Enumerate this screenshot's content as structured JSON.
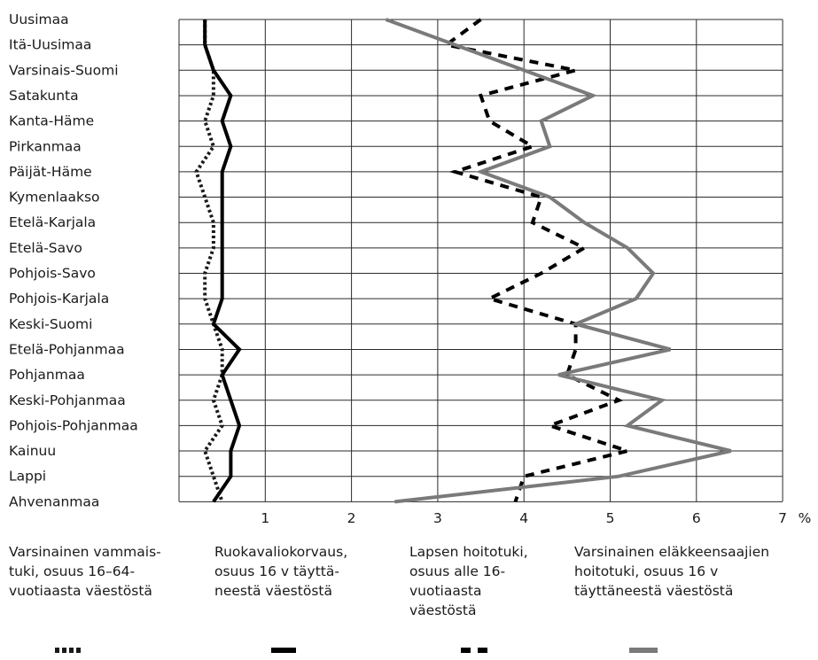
{
  "chart_data": {
    "type": "line",
    "orientation": "horizontal",
    "categories": [
      "Uusimaa",
      "Itä-Uusimaa",
      "Varsinais-Suomi",
      "Satakunta",
      "Kanta-Häme",
      "Pirkanmaa",
      "Päijät-Häme",
      "Kymenlaakso",
      "Etelä-Karjala",
      "Etelä-Savo",
      "Pohjois-Savo",
      "Pohjois-Karjala",
      "Keski-Suomi",
      "Etelä-Pohjanmaa",
      "Pohjanmaa",
      "Keski-Pohjanmaa",
      "Pohjois-Pohjanmaa",
      "Kainuu",
      "Lappi",
      "Ahvenanmaa"
    ],
    "xticks": [
      "1",
      "2",
      "3",
      "4",
      "5",
      "6",
      "7"
    ],
    "xunit": "%",
    "xlim": [
      0,
      7
    ],
    "grid": true,
    "legend_position": "bottom",
    "series": [
      {
        "name": "Varsinainen vammais-tuki, osuus 16–64-vuotiaasta väestöstä",
        "style": "dotted",
        "color": "#1a1a1a",
        "values": [
          0.3,
          0.3,
          0.4,
          0.4,
          0.3,
          0.4,
          0.2,
          0.3,
          0.4,
          0.4,
          0.3,
          0.3,
          0.4,
          0.5,
          0.5,
          0.4,
          0.5,
          0.3,
          0.4,
          0.5
        ]
      },
      {
        "name": "Ruokavaliokorvaus, osuus 16 v täyttä-neestä väestöstä",
        "style": "solid-thick",
        "color": "#000000",
        "values": [
          0.3,
          0.3,
          0.4,
          0.6,
          0.5,
          0.6,
          0.5,
          0.5,
          0.5,
          0.5,
          0.5,
          0.5,
          0.4,
          0.7,
          0.5,
          0.6,
          0.7,
          0.6,
          0.6,
          0.4
        ]
      },
      {
        "name": "Lapsen hoitotuki, osuus alle 16-vuotiaasta väestöstä",
        "style": "dashed",
        "color": "#000000",
        "values": [
          3.5,
          3.1,
          4.6,
          3.5,
          3.6,
          4.1,
          3.2,
          4.2,
          4.1,
          4.7,
          4.2,
          3.6,
          4.6,
          4.6,
          4.5,
          5.1,
          4.3,
          5.2,
          4.0,
          3.9
        ]
      },
      {
        "name": "Varsinainen eläkkeensaajien hoitotuki, osuus 16 v täyttäneestä väestöstä",
        "style": "solid-gray",
        "color": "#7a7a7a",
        "values": [
          2.4,
          3.2,
          4.0,
          4.8,
          4.2,
          4.3,
          3.5,
          4.3,
          4.7,
          5.2,
          5.5,
          5.3,
          4.6,
          5.7,
          4.4,
          5.6,
          5.2,
          6.4,
          5.1,
          2.5
        ]
      }
    ]
  },
  "legend": [
    {
      "text": "Varsinainen vammais-\ntuki, osuus 16–64-\nvuotiaasta väestöstä"
    },
    {
      "text": "Ruokavaliokorvaus,\nosuus 16 v täyttä-\nneestä väestöstä"
    },
    {
      "text": "Lapsen hoitotuki,\nosuus alle 16-\nvuotiaasta\nväestöstä"
    },
    {
      "text": "Varsinainen eläkkeensaajien\nhoitotuki, osuus 16 v\ntäyttäneestä väestöstä"
    }
  ]
}
